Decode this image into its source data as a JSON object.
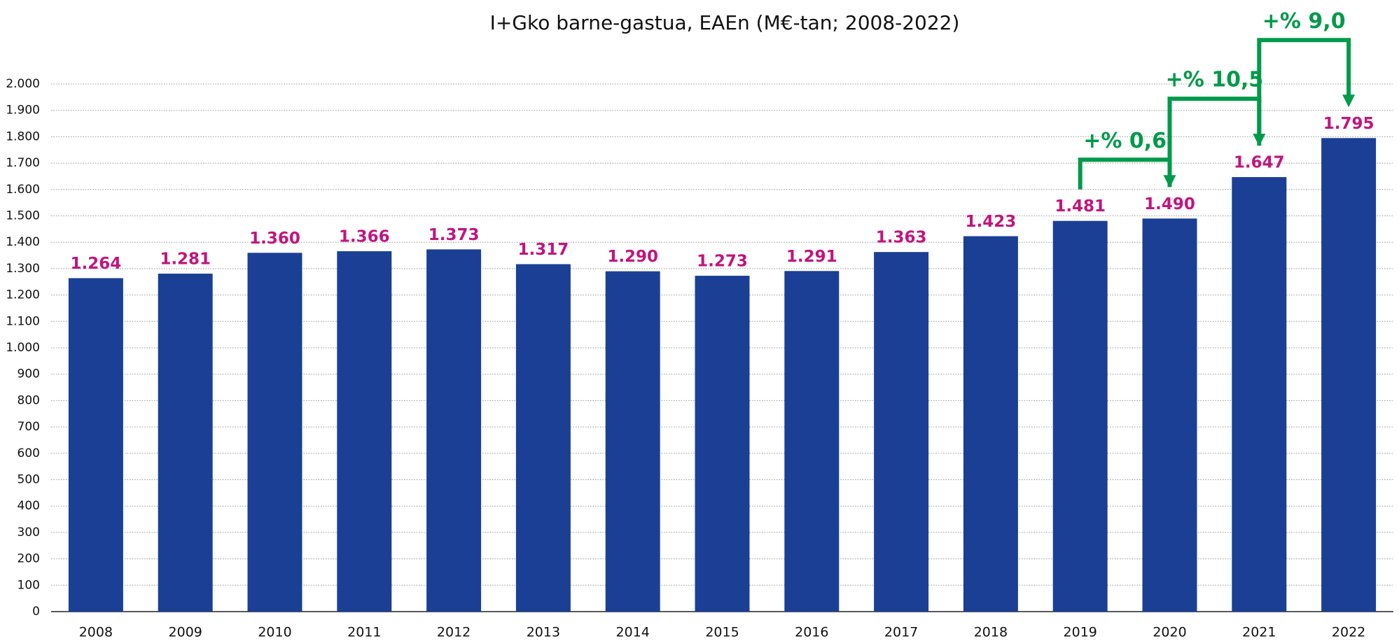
{
  "chart_data": {
    "type": "bar",
    "title": "I+Gko barne-gastua, EAEn (M€-tan; 2008-2022)",
    "categories": [
      "2008",
      "2009",
      "2010",
      "2011",
      "2012",
      "2013",
      "2014",
      "2015",
      "2016",
      "2017",
      "2018",
      "2019",
      "2020",
      "2021",
      "2022"
    ],
    "values": [
      1264,
      1281,
      1360,
      1366,
      1373,
      1317,
      1290,
      1273,
      1291,
      1363,
      1423,
      1481,
      1490,
      1647,
      1795
    ],
    "value_labels": [
      "1.264",
      "1.281",
      "1.360",
      "1.366",
      "1.373",
      "1.317",
      "1.290",
      "1.273",
      "1.291",
      "1.363",
      "1.423",
      "1.481",
      "1.490",
      "1.647",
      "1.795"
    ],
    "color": "#1a3f95",
    "label_color": "#c0157e",
    "ylim": [
      0,
      2000
    ],
    "yticks": [
      0,
      100,
      200,
      300,
      400,
      500,
      600,
      700,
      800,
      900,
      {
        "value": 1000,
        "label": "1.000"
      },
      {
        "value": 1100,
        "label": "1.100"
      },
      {
        "value": 1200,
        "label": "1.200"
      },
      {
        "value": 1300,
        "label": "1.300"
      },
      {
        "value": 1400,
        "label": "1.400"
      },
      {
        "value": 1500,
        "label": "1.500"
      },
      {
        "value": 1600,
        "label": "1.600"
      },
      {
        "value": 1700,
        "label": "1.700"
      },
      {
        "value": 1800,
        "label": "1.800"
      },
      {
        "value": 1900,
        "label": "1.900"
      },
      {
        "value": 2000,
        "label": "2.000"
      }
    ],
    "grid": true,
    "annotations": [
      {
        "text": "+% 0,6",
        "from": "2019",
        "to": "2020",
        "color": "#009a4a"
      },
      {
        "text": "+% 10,5",
        "from": "2020",
        "to": "2021",
        "color": "#009a4a"
      },
      {
        "text": "+% 9,0",
        "from": "2021",
        "to": "2022",
        "color": "#009a4a"
      }
    ]
  }
}
